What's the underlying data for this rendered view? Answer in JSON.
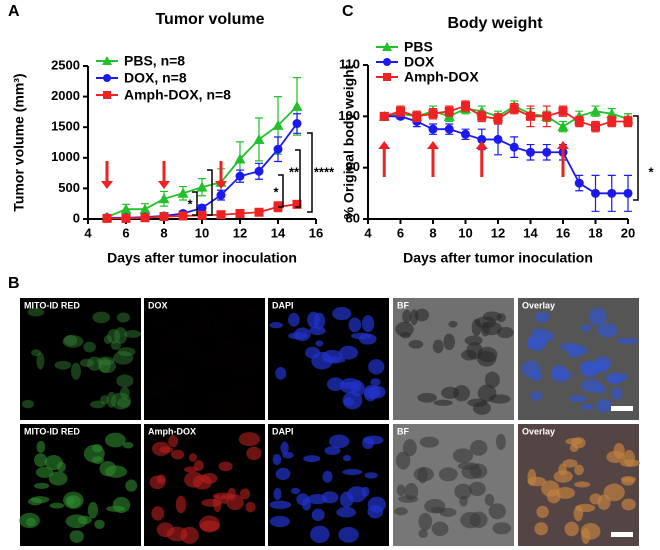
{
  "panel_letters": [
    "A",
    "B",
    "C"
  ],
  "chart_data": [
    {
      "type": "line",
      "title": "Tumor volume",
      "x_label": "Days after tumor inoculation",
      "y_label": "Tumor volume (mm³)",
      "x": [
        5,
        6,
        7,
        8,
        9,
        10,
        11,
        12,
        13,
        14,
        15
      ],
      "xlim": [
        4,
        16
      ],
      "xticks": [
        4,
        6,
        8,
        10,
        12,
        14,
        16
      ],
      "ylim": [
        0,
        2500
      ],
      "yticks": [
        0,
        500,
        1000,
        1500,
        2000,
        2500
      ],
      "legend": "upper left",
      "arrow_days": [
        5,
        8,
        11
      ],
      "arrow_direction": "down",
      "annotations": [
        "*",
        "*",
        "**",
        "****"
      ],
      "series": [
        {
          "name": "PBS, n=8",
          "color": "#22c02a",
          "marker": "triangle",
          "values": [
            30,
            160,
            160,
            330,
            420,
            520,
            600,
            980,
            1300,
            1530,
            1840
          ],
          "errors": [
            20,
            80,
            90,
            120,
            110,
            140,
            220,
            280,
            350,
            470,
            470
          ]
        },
        {
          "name": "DOX, n=8",
          "color": "#1a1aee",
          "marker": "circle",
          "values": [
            20,
            20,
            30,
            50,
            90,
            180,
            390,
            700,
            780,
            1140,
            1560
          ],
          "errors": [
            10,
            10,
            15,
            20,
            40,
            50,
            80,
            100,
            130,
            200,
            160
          ]
        },
        {
          "name": "Amph-DOX, n=8",
          "color": "#ee2222",
          "marker": "square",
          "values": [
            10,
            10,
            20,
            40,
            50,
            60,
            70,
            90,
            110,
            200,
            240
          ],
          "errors": [
            5,
            5,
            10,
            10,
            15,
            20,
            20,
            25,
            30,
            80,
            60
          ]
        }
      ]
    },
    {
      "type": "line",
      "title": "Body weight",
      "x_label": "Days after tumor inoculation",
      "y_label": "% Original body weight",
      "x": [
        5,
        6,
        7,
        8,
        9,
        10,
        11,
        12,
        13,
        14,
        15,
        16,
        17,
        18,
        19,
        20
      ],
      "xlim": [
        4,
        20
      ],
      "xticks": [
        4,
        6,
        8,
        10,
        12,
        14,
        16,
        18,
        20
      ],
      "ylim": [
        80,
        110
      ],
      "yticks": [
        80,
        90,
        100,
        110
      ],
      "legend": "upper left",
      "arrow_days": [
        5,
        8,
        11,
        16
      ],
      "arrow_direction": "up",
      "annotations": [
        "*"
      ],
      "series": [
        {
          "name": "PBS",
          "color": "#22c02a",
          "marker": "triangle",
          "values": [
            100,
            100.5,
            100,
            101,
            100,
            101.5,
            101,
            100,
            102,
            100.5,
            100,
            98,
            100,
            101,
            100.5,
            99.5
          ],
          "errors": [
            0.5,
            1,
            1,
            1,
            1,
            1,
            1,
            1,
            1,
            1,
            1,
            1,
            1,
            1,
            1,
            1
          ]
        },
        {
          "name": "DOX",
          "color": "#1a1aee",
          "marker": "circle",
          "values": [
            100,
            100,
            99,
            97.5,
            97.5,
            96.5,
            95.5,
            95.5,
            94,
            93,
            93,
            93,
            87,
            85,
            85,
            85
          ],
          "errors": [
            0.5,
            0.5,
            1,
            1,
            1,
            1,
            2,
            3,
            2,
            1.5,
            1.5,
            1.5,
            1.5,
            3.5,
            3.5,
            3.5
          ]
        },
        {
          "name": "Amph-DOX",
          "color": "#ee2222",
          "marker": "square",
          "values": [
            100,
            101,
            100,
            100.5,
            101,
            102,
            100,
            99.5,
            101.5,
            100,
            100,
            101,
            99,
            98,
            99,
            99
          ],
          "errors": [
            0.5,
            1,
            1,
            1,
            1,
            1,
            1,
            1,
            1,
            2,
            2,
            1,
            1,
            1,
            1,
            1
          ]
        }
      ]
    }
  ],
  "microscopy": {
    "labels": [
      [
        "MITO-ID RED",
        "DOX",
        "DAPI",
        "BF",
        "Overlay"
      ],
      [
        "MITO-ID RED",
        "Amph-DOX",
        "DAPI",
        "BF",
        "Overlay"
      ]
    ]
  }
}
